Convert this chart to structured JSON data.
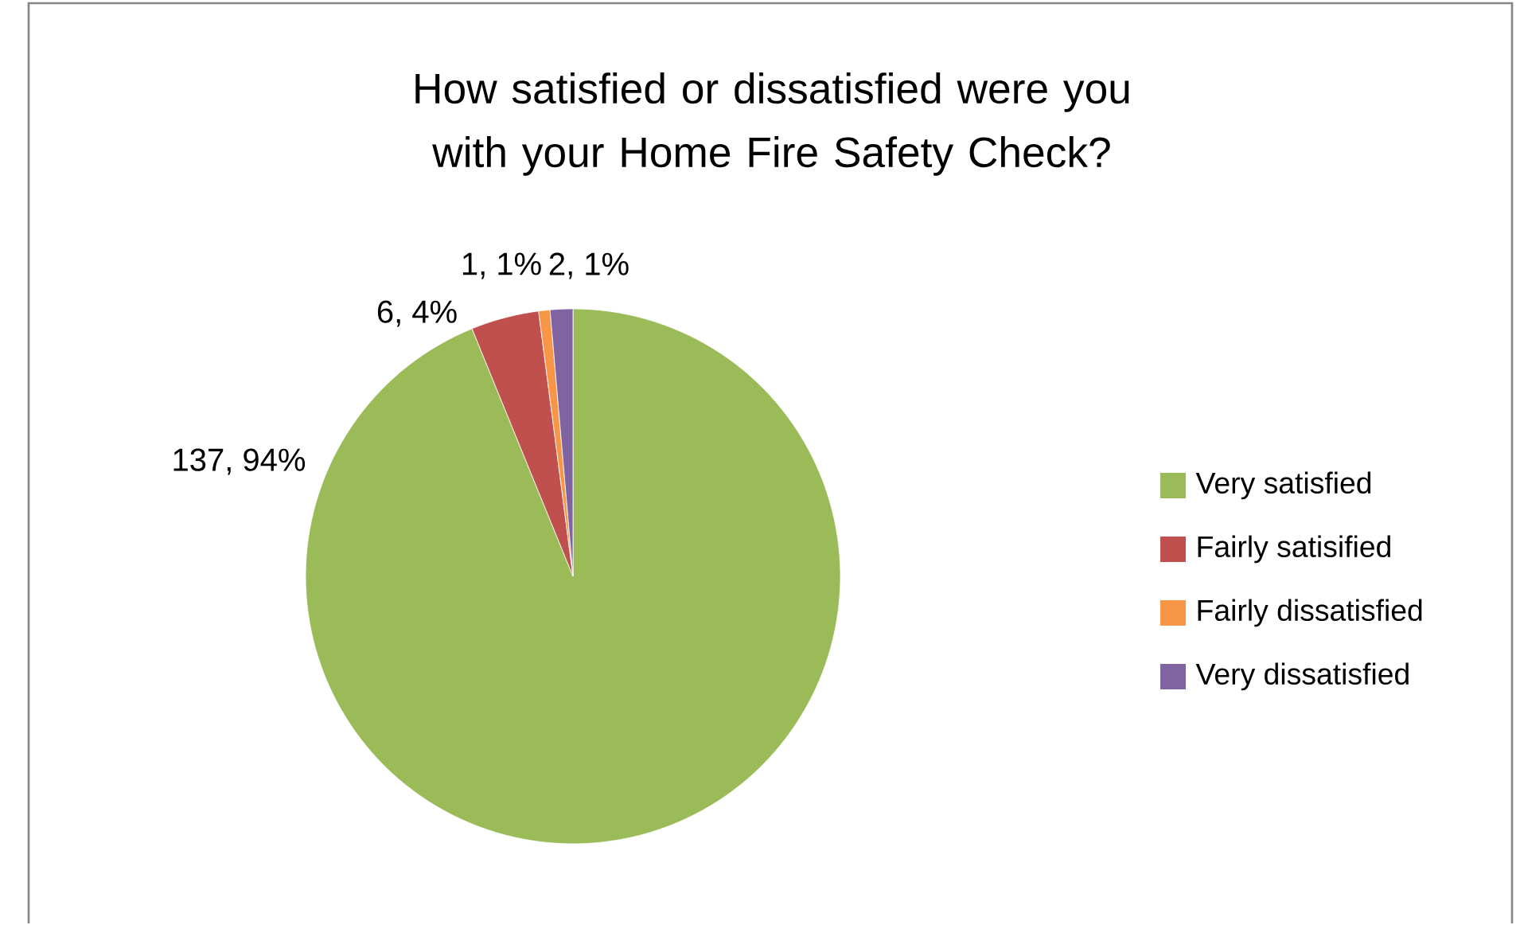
{
  "chart_data": {
    "type": "pie",
    "title": "How satisfied or dissatisfied were you with your Home Fire Safety Check?",
    "categories": [
      "Very satisfied",
      "Fairly satisified",
      "Fairly dissatisfied",
      "Very dissatisfied"
    ],
    "values": [
      137,
      6,
      1,
      2
    ],
    "colors": [
      "#9bbb59",
      "#c0504d",
      "#f79646",
      "#8064a2"
    ],
    "value_labels": [
      "137, 94%",
      "6, 4%",
      "1, 1%",
      "2, 1%"
    ],
    "legend": "right"
  }
}
